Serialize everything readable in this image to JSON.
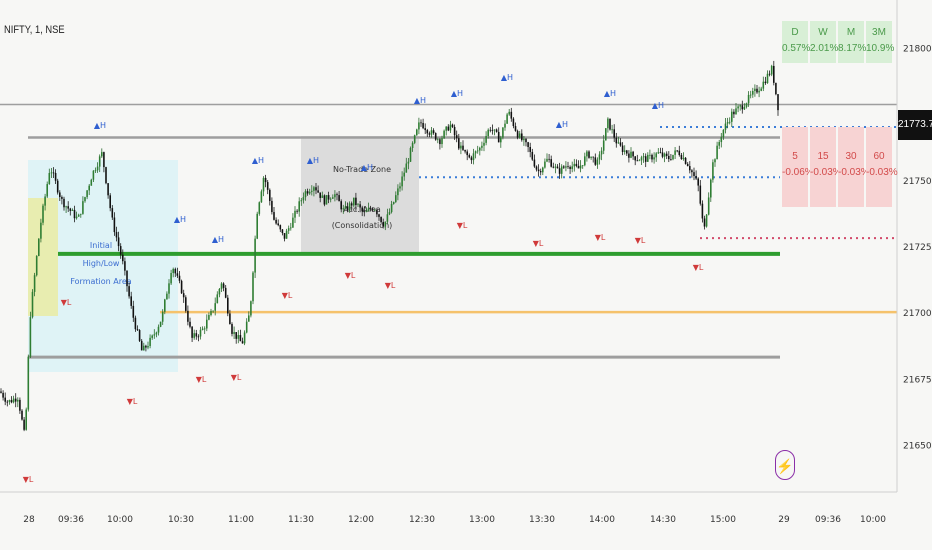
{
  "header": {
    "symbol": "NIFTY, 1, NSE"
  },
  "last_price": "21773.70",
  "colors": {
    "up": "#2e7d32",
    "down": "#c62828",
    "grid_line": "#9e9e9e",
    "green_level": "#2e9d2e",
    "orange_level": "#f5c26b",
    "blue_dotted": "#3b7dd8",
    "red_dotted": "#d24a6a"
  },
  "stats_table": {
    "periods": [
      "D",
      "W",
      "M",
      "3M"
    ],
    "changes": [
      "0.57%",
      "2.01%",
      "8.17%",
      "10.9%"
    ],
    "intervals": [
      "5",
      "15",
      "30",
      "60"
    ],
    "interval_changes": [
      "-0.06%",
      "-0.03%",
      "-0.03%",
      "-0.03%"
    ]
  },
  "zones": {
    "initial_label": "Initial\nHigh/Low\nFormation Area",
    "no_trade_label": "No-Trade Zone",
    "accumulation_label": "Acc. Area\n(Consolidation)"
  },
  "markers": {
    "high": "▲H",
    "low": "▼L"
  },
  "chart_data": {
    "type": "candlestick",
    "title": "NIFTY, 1, NSE",
    "y_axis": {
      "ticks": [
        "21800.00",
        "21775.00",
        "21750.00",
        "21725.00",
        "21700.00",
        "21675.00",
        "21650.00"
      ],
      "range": [
        21632,
        21818
      ]
    },
    "x_axis": {
      "ticks": [
        "28",
        "09:36",
        "10:00",
        "10:30",
        "11:00",
        "11:30",
        "12:00",
        "12:30",
        "13:00",
        "13:30",
        "14:00",
        "14:30",
        "15:00",
        "29",
        "09:36",
        "10:00"
      ]
    },
    "path_points": [
      [
        0,
        21670
      ],
      [
        8,
        21666
      ],
      [
        18,
        21668
      ],
      [
        25,
        21652
      ],
      [
        30,
        21698
      ],
      [
        40,
        21732
      ],
      [
        50,
        21755
      ],
      [
        62,
        21742
      ],
      [
        78,
        21735
      ],
      [
        92,
        21752
      ],
      [
        102,
        21760
      ],
      [
        112,
        21735
      ],
      [
        122,
        21720
      ],
      [
        132,
        21700
      ],
      [
        142,
        21685
      ],
      [
        152,
        21690
      ],
      [
        162,
        21698
      ],
      [
        172,
        21718
      ],
      [
        182,
        21708
      ],
      [
        192,
        21690
      ],
      [
        202,
        21693
      ],
      [
        212,
        21700
      ],
      [
        222,
        21712
      ],
      [
        232,
        21693
      ],
      [
        242,
        21688
      ],
      [
        250,
        21700
      ],
      [
        257,
        21738
      ],
      [
        264,
        21752
      ],
      [
        274,
        21735
      ],
      [
        284,
        21728
      ],
      [
        294,
        21736
      ],
      [
        304,
        21745
      ],
      [
        314,
        21748
      ],
      [
        324,
        21742
      ],
      [
        334,
        21745
      ],
      [
        344,
        21738
      ],
      [
        354,
        21742
      ],
      [
        364,
        21737
      ],
      [
        374,
        21740
      ],
      [
        384,
        21733
      ],
      [
        392,
        21740
      ],
      [
        400,
        21748
      ],
      [
        410,
        21760
      ],
      [
        420,
        21772
      ],
      [
        430,
        21768
      ],
      [
        440,
        21765
      ],
      [
        450,
        21771
      ],
      [
        460,
        21762
      ],
      [
        470,
        21758
      ],
      [
        480,
        21762
      ],
      [
        490,
        21770
      ],
      [
        500,
        21765
      ],
      [
        508,
        21776
      ],
      [
        518,
        21767
      ],
      [
        528,
        21762
      ],
      [
        538,
        21753
      ],
      [
        548,
        21758
      ],
      [
        558,
        21753
      ],
      [
        568,
        21756
      ],
      [
        578,
        21754
      ],
      [
        588,
        21760
      ],
      [
        598,
        21756
      ],
      [
        608,
        21772
      ],
      [
        618,
        21763
      ],
      [
        628,
        21760
      ],
      [
        638,
        21758
      ],
      [
        648,
        21758
      ],
      [
        658,
        21760
      ],
      [
        668,
        21758
      ],
      [
        678,
        21761
      ],
      [
        688,
        21756
      ],
      [
        698,
        21748
      ],
      [
        704,
        21730
      ],
      [
        712,
        21755
      ],
      [
        722,
        21768
      ],
      [
        732,
        21775
      ],
      [
        742,
        21778
      ],
      [
        752,
        21782
      ],
      [
        762,
        21786
      ],
      [
        772,
        21792
      ],
      [
        780,
        21773
      ]
    ],
    "levels": [
      {
        "name": "gray-top",
        "value": 21778.5
      },
      {
        "name": "gray-mid",
        "value": 21766
      },
      {
        "name": "green",
        "value": 21722
      },
      {
        "name": "orange",
        "value": 21700
      },
      {
        "name": "gray-bottom",
        "value": 21683
      },
      {
        "name": "blue-dotted-1",
        "value": 21770
      },
      {
        "name": "blue-dotted-2",
        "value": 21751
      },
      {
        "name": "red-dotted",
        "value": 21728
      }
    ]
  }
}
